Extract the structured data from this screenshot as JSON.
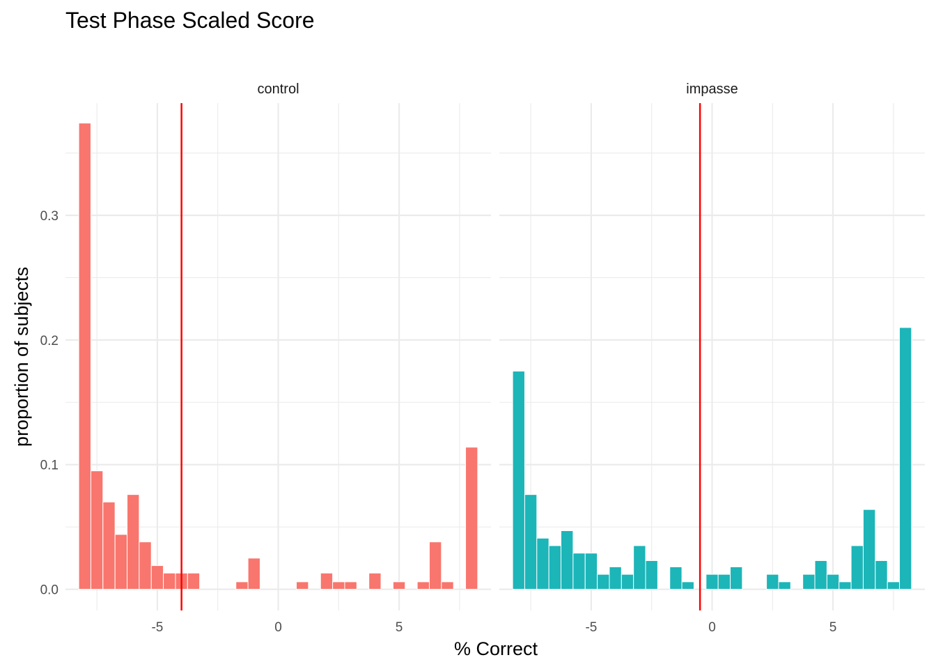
{
  "chart_data": {
    "type": "bar",
    "title": "Test Phase Scaled Score",
    "xlabel": "% Correct",
    "ylabel": "proportion of subjects",
    "xlim": [
      -8.8,
      8.8
    ],
    "ylim": [
      -0.017,
      0.39
    ],
    "x_ticks": [
      -5,
      0,
      5
    ],
    "x_tick_labels": [
      "-5",
      "0",
      "5"
    ],
    "y_ticks": [
      0.0,
      0.1,
      0.2,
      0.3
    ],
    "y_tick_labels": [
      "0.0",
      "0.1",
      "0.2",
      "0.3"
    ],
    "bin_width": 0.5,
    "grid": true,
    "legend": "none",
    "panels": [
      {
        "name": "control",
        "color": "#F8766D",
        "vline": -4,
        "vline_color": "#FF0000",
        "bins": [
          {
            "x": -8.0,
            "y": 0.374
          },
          {
            "x": -7.5,
            "y": 0.095
          },
          {
            "x": -7.0,
            "y": 0.07
          },
          {
            "x": -6.5,
            "y": 0.044
          },
          {
            "x": -6.0,
            "y": 0.076
          },
          {
            "x": -5.5,
            "y": 0.038
          },
          {
            "x": -5.0,
            "y": 0.019
          },
          {
            "x": -4.5,
            "y": 0.013
          },
          {
            "x": -4.0,
            "y": 0.013
          },
          {
            "x": -3.5,
            "y": 0.013
          },
          {
            "x": -1.5,
            "y": 0.006
          },
          {
            "x": -1.0,
            "y": 0.025
          },
          {
            "x": 1.0,
            "y": 0.006
          },
          {
            "x": 2.0,
            "y": 0.013
          },
          {
            "x": 2.5,
            "y": 0.006
          },
          {
            "x": 3.0,
            "y": 0.006
          },
          {
            "x": 4.0,
            "y": 0.013
          },
          {
            "x": 5.0,
            "y": 0.006
          },
          {
            "x": 6.0,
            "y": 0.006
          },
          {
            "x": 6.5,
            "y": 0.038
          },
          {
            "x": 7.0,
            "y": 0.006
          },
          {
            "x": 8.0,
            "y": 0.114
          }
        ]
      },
      {
        "name": "impasse",
        "color": "#1CB5B8",
        "vline": -0.5,
        "vline_color": "#FF0000",
        "bins": [
          {
            "x": -8.0,
            "y": 0.175
          },
          {
            "x": -7.5,
            "y": 0.076
          },
          {
            "x": -7.0,
            "y": 0.041
          },
          {
            "x": -6.5,
            "y": 0.035
          },
          {
            "x": -6.0,
            "y": 0.047
          },
          {
            "x": -5.5,
            "y": 0.029
          },
          {
            "x": -5.0,
            "y": 0.029
          },
          {
            "x": -4.5,
            "y": 0.012
          },
          {
            "x": -4.0,
            "y": 0.018
          },
          {
            "x": -3.5,
            "y": 0.012
          },
          {
            "x": -3.0,
            "y": 0.035
          },
          {
            "x": -2.5,
            "y": 0.023
          },
          {
            "x": -1.5,
            "y": 0.018
          },
          {
            "x": -1.0,
            "y": 0.006
          },
          {
            "x": 0.0,
            "y": 0.012
          },
          {
            "x": 0.5,
            "y": 0.012
          },
          {
            "x": 1.0,
            "y": 0.018
          },
          {
            "x": 2.5,
            "y": 0.012
          },
          {
            "x": 3.0,
            "y": 0.006
          },
          {
            "x": 4.0,
            "y": 0.012
          },
          {
            "x": 4.5,
            "y": 0.023
          },
          {
            "x": 5.0,
            "y": 0.012
          },
          {
            "x": 5.5,
            "y": 0.006
          },
          {
            "x": 6.0,
            "y": 0.035
          },
          {
            "x": 6.5,
            "y": 0.064
          },
          {
            "x": 7.0,
            "y": 0.023
          },
          {
            "x": 7.5,
            "y": 0.006
          },
          {
            "x": 8.0,
            "y": 0.21
          }
        ]
      }
    ]
  }
}
